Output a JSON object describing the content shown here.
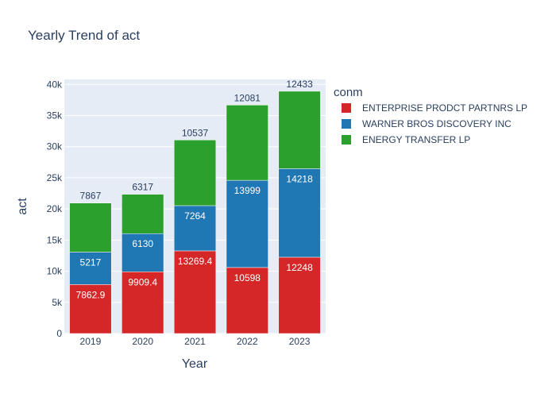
{
  "chart_data": {
    "type": "bar",
    "barmode": "stack",
    "title": "Yearly Trend of act",
    "xlabel": "Year",
    "ylabel": "act",
    "categories": [
      "2019",
      "2020",
      "2021",
      "2022",
      "2023"
    ],
    "ylim": [
      0,
      40800
    ],
    "yticks": [
      0,
      5000,
      10000,
      15000,
      20000,
      25000,
      30000,
      35000,
      40000
    ],
    "ytick_labels": [
      "0",
      "5k",
      "10k",
      "15k",
      "20k",
      "25k",
      "30k",
      "35k",
      "40k"
    ],
    "grid": true,
    "legend": {
      "title": "conm",
      "position": "top-right"
    },
    "series": [
      {
        "name": "ENTERPRISE PRODCT PARTNRS LP",
        "color": "#d62728",
        "values": [
          7862.9,
          9909.4,
          13269.4,
          10598,
          12248
        ],
        "labels": [
          "7862.9",
          "9909.4",
          "13269.4",
          "10598",
          "12248"
        ]
      },
      {
        "name": "WARNER BROS DISCOVERY INC",
        "color": "#1f77b4",
        "values": [
          5217,
          6130,
          7264,
          13999,
          14218
        ],
        "labels": [
          "5217",
          "6130",
          "7264",
          "13999",
          "14218"
        ]
      },
      {
        "name": "ENERGY TRANSFER LP",
        "color": "#2ca02c",
        "values": [
          7867,
          6317,
          10537,
          12081,
          12433
        ],
        "labels": [
          "7867",
          "6317",
          "10537",
          "12081",
          "12433"
        ]
      }
    ]
  }
}
